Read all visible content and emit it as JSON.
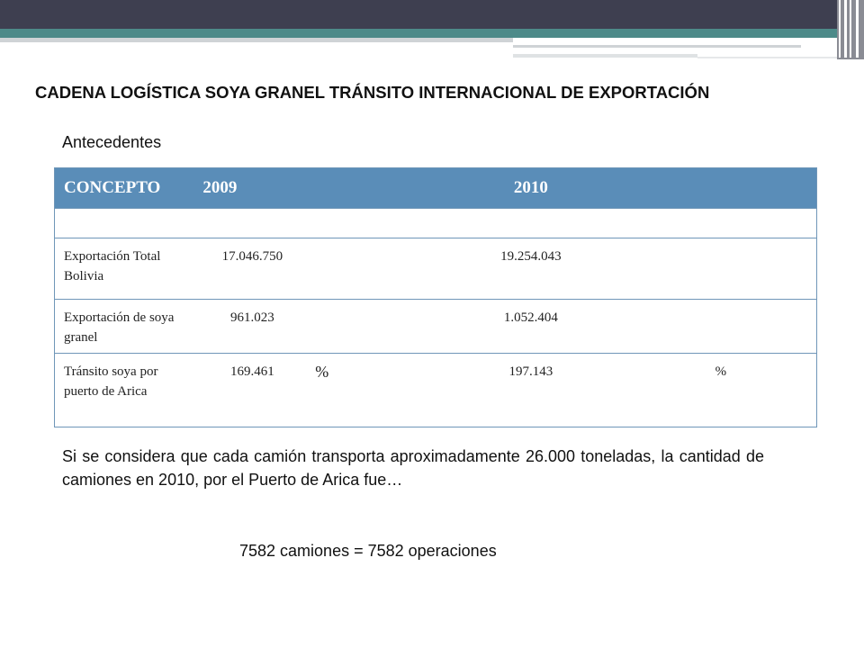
{
  "slide": {
    "title": "CADENA LOGÍSTICA SOYA GRANEL TRÁNSITO INTERNACIONAL DE EXPORTACIÓN",
    "subtitle": "Antecedentes",
    "table": {
      "headers": [
        "CONCEPTO",
        "2009",
        "2010"
      ],
      "rows": [
        {
          "concept": "Exportación Total Bolivia",
          "v2009": "17.046.750",
          "pct2009": "",
          "v2010": "19.254.043",
          "pct2010": ""
        },
        {
          "concept": "Exportación de soya granel",
          "v2009": "961.023",
          "pct2009": "",
          "v2010": "1.052.404",
          "pct2010": ""
        },
        {
          "concept": "Tránsito soya por puerto de Arica",
          "v2009": "169.461",
          "pct2009": "%",
          "v2010": "197.143",
          "pct2010": "%"
        }
      ]
    },
    "body": "Si se considera que cada camión transporta aproximadamente 26.000 toneladas, la cantidad de camiones en 2010, por el Puerto de Arica fue…",
    "result": "7582 camiones = 7582 operaciones"
  },
  "colors": {
    "header_bar": "#3e3f50",
    "accent_teal": "#4d8a89",
    "table_header": "#5a8db8",
    "table_border": "#6f96b8"
  }
}
